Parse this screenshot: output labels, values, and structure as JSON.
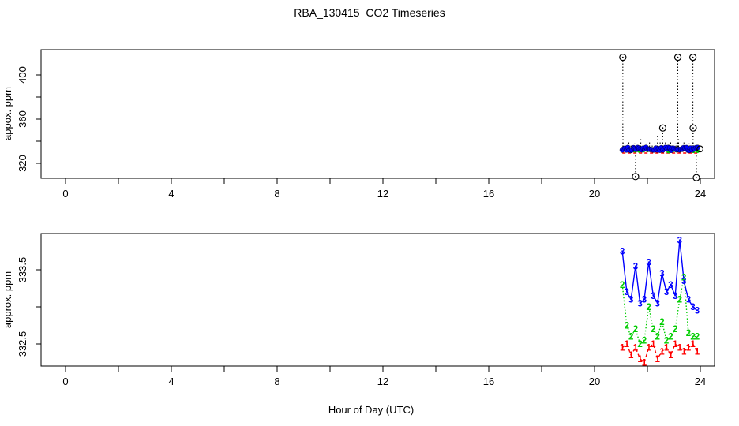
{
  "title": "RBA_130415  CO2 Timeseries",
  "colors": {
    "axis": "#000000",
    "series1_red": "#FF0000",
    "series2_green": "#00CD00",
    "series3_blue": "#0000FF"
  },
  "chart_data": [
    {
      "type": "scatter",
      "panel": "top",
      "title": "RBA_130415  CO2 Timeseries",
      "xlabel": "",
      "ylabel": "appox. ppm",
      "xlim": [
        -0.9,
        24.55
      ],
      "ylim": [
        306,
        423
      ],
      "grid": false,
      "legend": "none",
      "x_ticks": [
        0,
        2,
        4,
        6,
        8,
        10,
        12,
        14,
        16,
        18,
        20,
        22,
        24
      ],
      "x_tick_labels": [
        "0",
        "4",
        "8",
        "12",
        "16",
        "20",
        "24"
      ],
      "y_ticks": [
        320,
        340,
        360,
        380,
        400
      ],
      "y_tick_labels": [
        "320",
        "360",
        "400"
      ],
      "cluster": {
        "description": "densely overplotted points, mostly blue with green and red flecks",
        "x_start": 21.05,
        "x_end": 23.9,
        "n": 55,
        "value_ppm": 333
      },
      "spikes": [
        [
          21.08,
          344
        ],
        [
          21.15,
          338
        ],
        [
          21.22,
          337
        ],
        [
          21.3,
          340
        ],
        [
          21.38,
          337
        ],
        [
          21.45,
          336
        ],
        [
          21.52,
          338
        ],
        [
          21.6,
          337
        ],
        [
          21.68,
          336
        ],
        [
          21.75,
          342
        ],
        [
          21.83,
          337
        ],
        [
          21.9,
          336
        ],
        [
          21.98,
          338
        ],
        [
          22.08,
          340
        ],
        [
          22.18,
          337
        ],
        [
          22.28,
          338
        ],
        [
          22.38,
          346
        ],
        [
          22.48,
          340
        ],
        [
          22.58,
          337
        ],
        [
          22.68,
          341
        ],
        [
          22.78,
          337
        ],
        [
          22.88,
          339
        ],
        [
          22.98,
          336
        ],
        [
          23.08,
          338
        ],
        [
          23.18,
          342
        ],
        [
          23.28,
          337
        ],
        [
          23.38,
          339
        ],
        [
          23.48,
          337
        ],
        [
          23.58,
          338
        ]
      ],
      "outliers": [
        [
          21.07,
          416
        ],
        [
          23.15,
          416
        ],
        [
          23.72,
          416
        ],
        [
          22.58,
          352
        ],
        [
          23.73,
          352
        ],
        [
          21.55,
          308
        ],
        [
          23.85,
          307
        ]
      ]
    },
    {
      "type": "line",
      "panel": "bottom",
      "xlabel": "Hour of Day (UTC)",
      "ylabel": "approx. ppm",
      "xlim": [
        -0.9,
        24.55
      ],
      "ylim": [
        332.2,
        334.0
      ],
      "grid": false,
      "legend": "none",
      "x_ticks": [
        0,
        2,
        4,
        6,
        8,
        10,
        12,
        14,
        16,
        18,
        20,
        22,
        24
      ],
      "x_tick_labels": [
        "0",
        "4",
        "8",
        "12",
        "16",
        "20",
        "24"
      ],
      "y_ticks": [
        332.5,
        333.0,
        333.5
      ],
      "y_tick_labels": [
        "332.5",
        "333.5"
      ],
      "x": [
        21.05,
        21.22,
        21.38,
        21.55,
        21.72,
        21.88,
        22.05,
        22.22,
        22.38,
        22.55,
        22.72,
        22.88,
        23.05,
        23.22,
        23.38,
        23.55,
        23.72,
        23.88
      ],
      "series": [
        {
          "name": "1",
          "color": "#FF0000",
          "values": [
            332.45,
            332.5,
            332.35,
            332.45,
            332.3,
            332.25,
            332.45,
            332.5,
            332.3,
            332.4,
            332.45,
            332.35,
            332.5,
            332.45,
            332.4,
            332.45,
            332.5,
            332.4
          ]
        },
        {
          "name": "2",
          "color": "#00CD00",
          "values": [
            333.3,
            332.75,
            332.6,
            332.7,
            332.5,
            332.55,
            333.0,
            332.7,
            332.6,
            332.8,
            332.55,
            332.6,
            332.7,
            333.1,
            333.4,
            332.65,
            332.6,
            332.6
          ]
        },
        {
          "name": "3",
          "color": "#0000FF",
          "values": [
            333.75,
            333.2,
            333.1,
            333.55,
            333.05,
            333.1,
            333.6,
            333.15,
            333.05,
            333.45,
            333.2,
            333.3,
            333.15,
            333.9,
            333.35,
            333.1,
            333.0,
            332.95
          ]
        }
      ]
    }
  ]
}
